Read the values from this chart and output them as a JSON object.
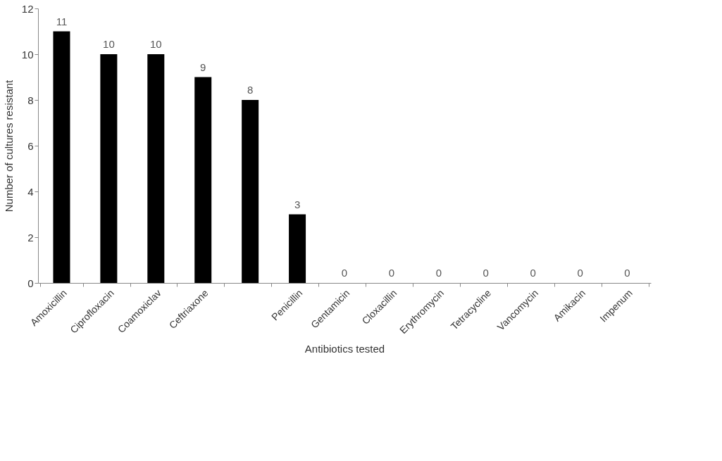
{
  "chart_data": {
    "type": "bar",
    "xlabel": "Antibiotics tested",
    "ylabel": "Number  of cultures resistant",
    "categories": [
      "Amoxicillin",
      "Ciprofloxacin",
      "Coamoxiclav",
      "Ceftriaxone",
      null,
      "Penicillin",
      "Gentamicin",
      "Cloxacillin",
      "Erythromycin",
      "Tetracycline",
      "Vancomycin",
      "Amikacin",
      "Impenum"
    ],
    "values": [
      11,
      10,
      10,
      9,
      8,
      3,
      0,
      0,
      0,
      0,
      0,
      0,
      0
    ],
    "color": "#000000",
    "ylim": [
      0,
      12
    ],
    "yticks": [
      0,
      2,
      4,
      6,
      8,
      10,
      12
    ],
    "data_labels": true,
    "grid": false
  }
}
